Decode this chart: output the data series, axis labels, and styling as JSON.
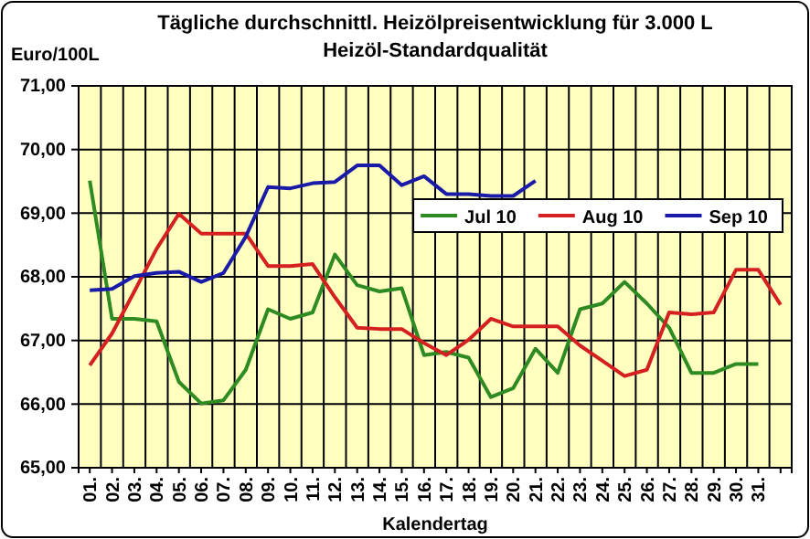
{
  "chart_data": {
    "type": "line",
    "title": "Tägliche durchschnittl. Heizölpreisentwicklung für 3.000 L",
    "subtitle": "Heizöl-Standardqualität",
    "ylabel": "Euro/100L",
    "xlabel": "Kalendertag",
    "categories": [
      "01.",
      "02.",
      "03.",
      "04.",
      "05.",
      "06.",
      "07.",
      "08.",
      "09.",
      "10.",
      "11.",
      "12.",
      "13.",
      "14.",
      "15.",
      "16.",
      "17.",
      "18.",
      "19.",
      "20.",
      "21.",
      "22.",
      "23.",
      "24.",
      "25.",
      "26.",
      "27.",
      "28.",
      "29.",
      "30.",
      "31.",
      null
    ],
    "series": [
      {
        "name": "Jul 10",
        "color": "#2e8b22",
        "values": [
          69.51,
          67.34,
          67.34,
          67.3,
          66.35,
          66.01,
          66.06,
          66.54,
          67.49,
          67.34,
          67.44,
          68.35,
          67.87,
          67.77,
          67.82,
          66.77,
          66.82,
          66.73,
          66.11,
          66.25,
          66.87,
          66.49,
          67.49,
          67.58,
          67.92,
          67.58,
          67.2,
          66.49,
          66.49,
          66.63,
          66.63,
          null
        ]
      },
      {
        "name": "Aug 10",
        "color": "#d42020",
        "values": [
          66.61,
          67.11,
          67.77,
          68.44,
          68.99,
          68.68,
          68.68,
          68.68,
          68.17,
          68.17,
          68.2,
          67.68,
          67.2,
          67.18,
          67.18,
          66.96,
          66.77,
          67.01,
          67.34,
          67.22,
          67.22,
          67.22,
          66.92,
          66.68,
          66.44,
          66.54,
          67.44,
          67.41,
          67.44,
          68.11,
          68.11,
          67.56
        ]
      },
      {
        "name": "Sep 10",
        "color": "#1a1aa8",
        "values": [
          67.79,
          67.81,
          68.01,
          68.06,
          68.08,
          67.92,
          68.06,
          68.63,
          69.41,
          69.39,
          69.47,
          69.49,
          69.75,
          69.75,
          69.44,
          69.58,
          69.3,
          69.3,
          69.27,
          69.27,
          69.51,
          null,
          null,
          null,
          null,
          null,
          null,
          null,
          null,
          null,
          null,
          null
        ]
      }
    ],
    "ylim": [
      65,
      71
    ],
    "yticks": [
      {
        "value": 65,
        "label": "65,00"
      },
      {
        "value": 66,
        "label": "66,00"
      },
      {
        "value": 67,
        "label": "67,00"
      },
      {
        "value": 68,
        "label": "68,00"
      },
      {
        "value": 69,
        "label": "69,00"
      },
      {
        "value": 70,
        "label": "70,00"
      },
      {
        "value": 71,
        "label": "71,00"
      }
    ],
    "grid": true,
    "legend": "top right",
    "marker": "none",
    "line_style": "solid"
  }
}
